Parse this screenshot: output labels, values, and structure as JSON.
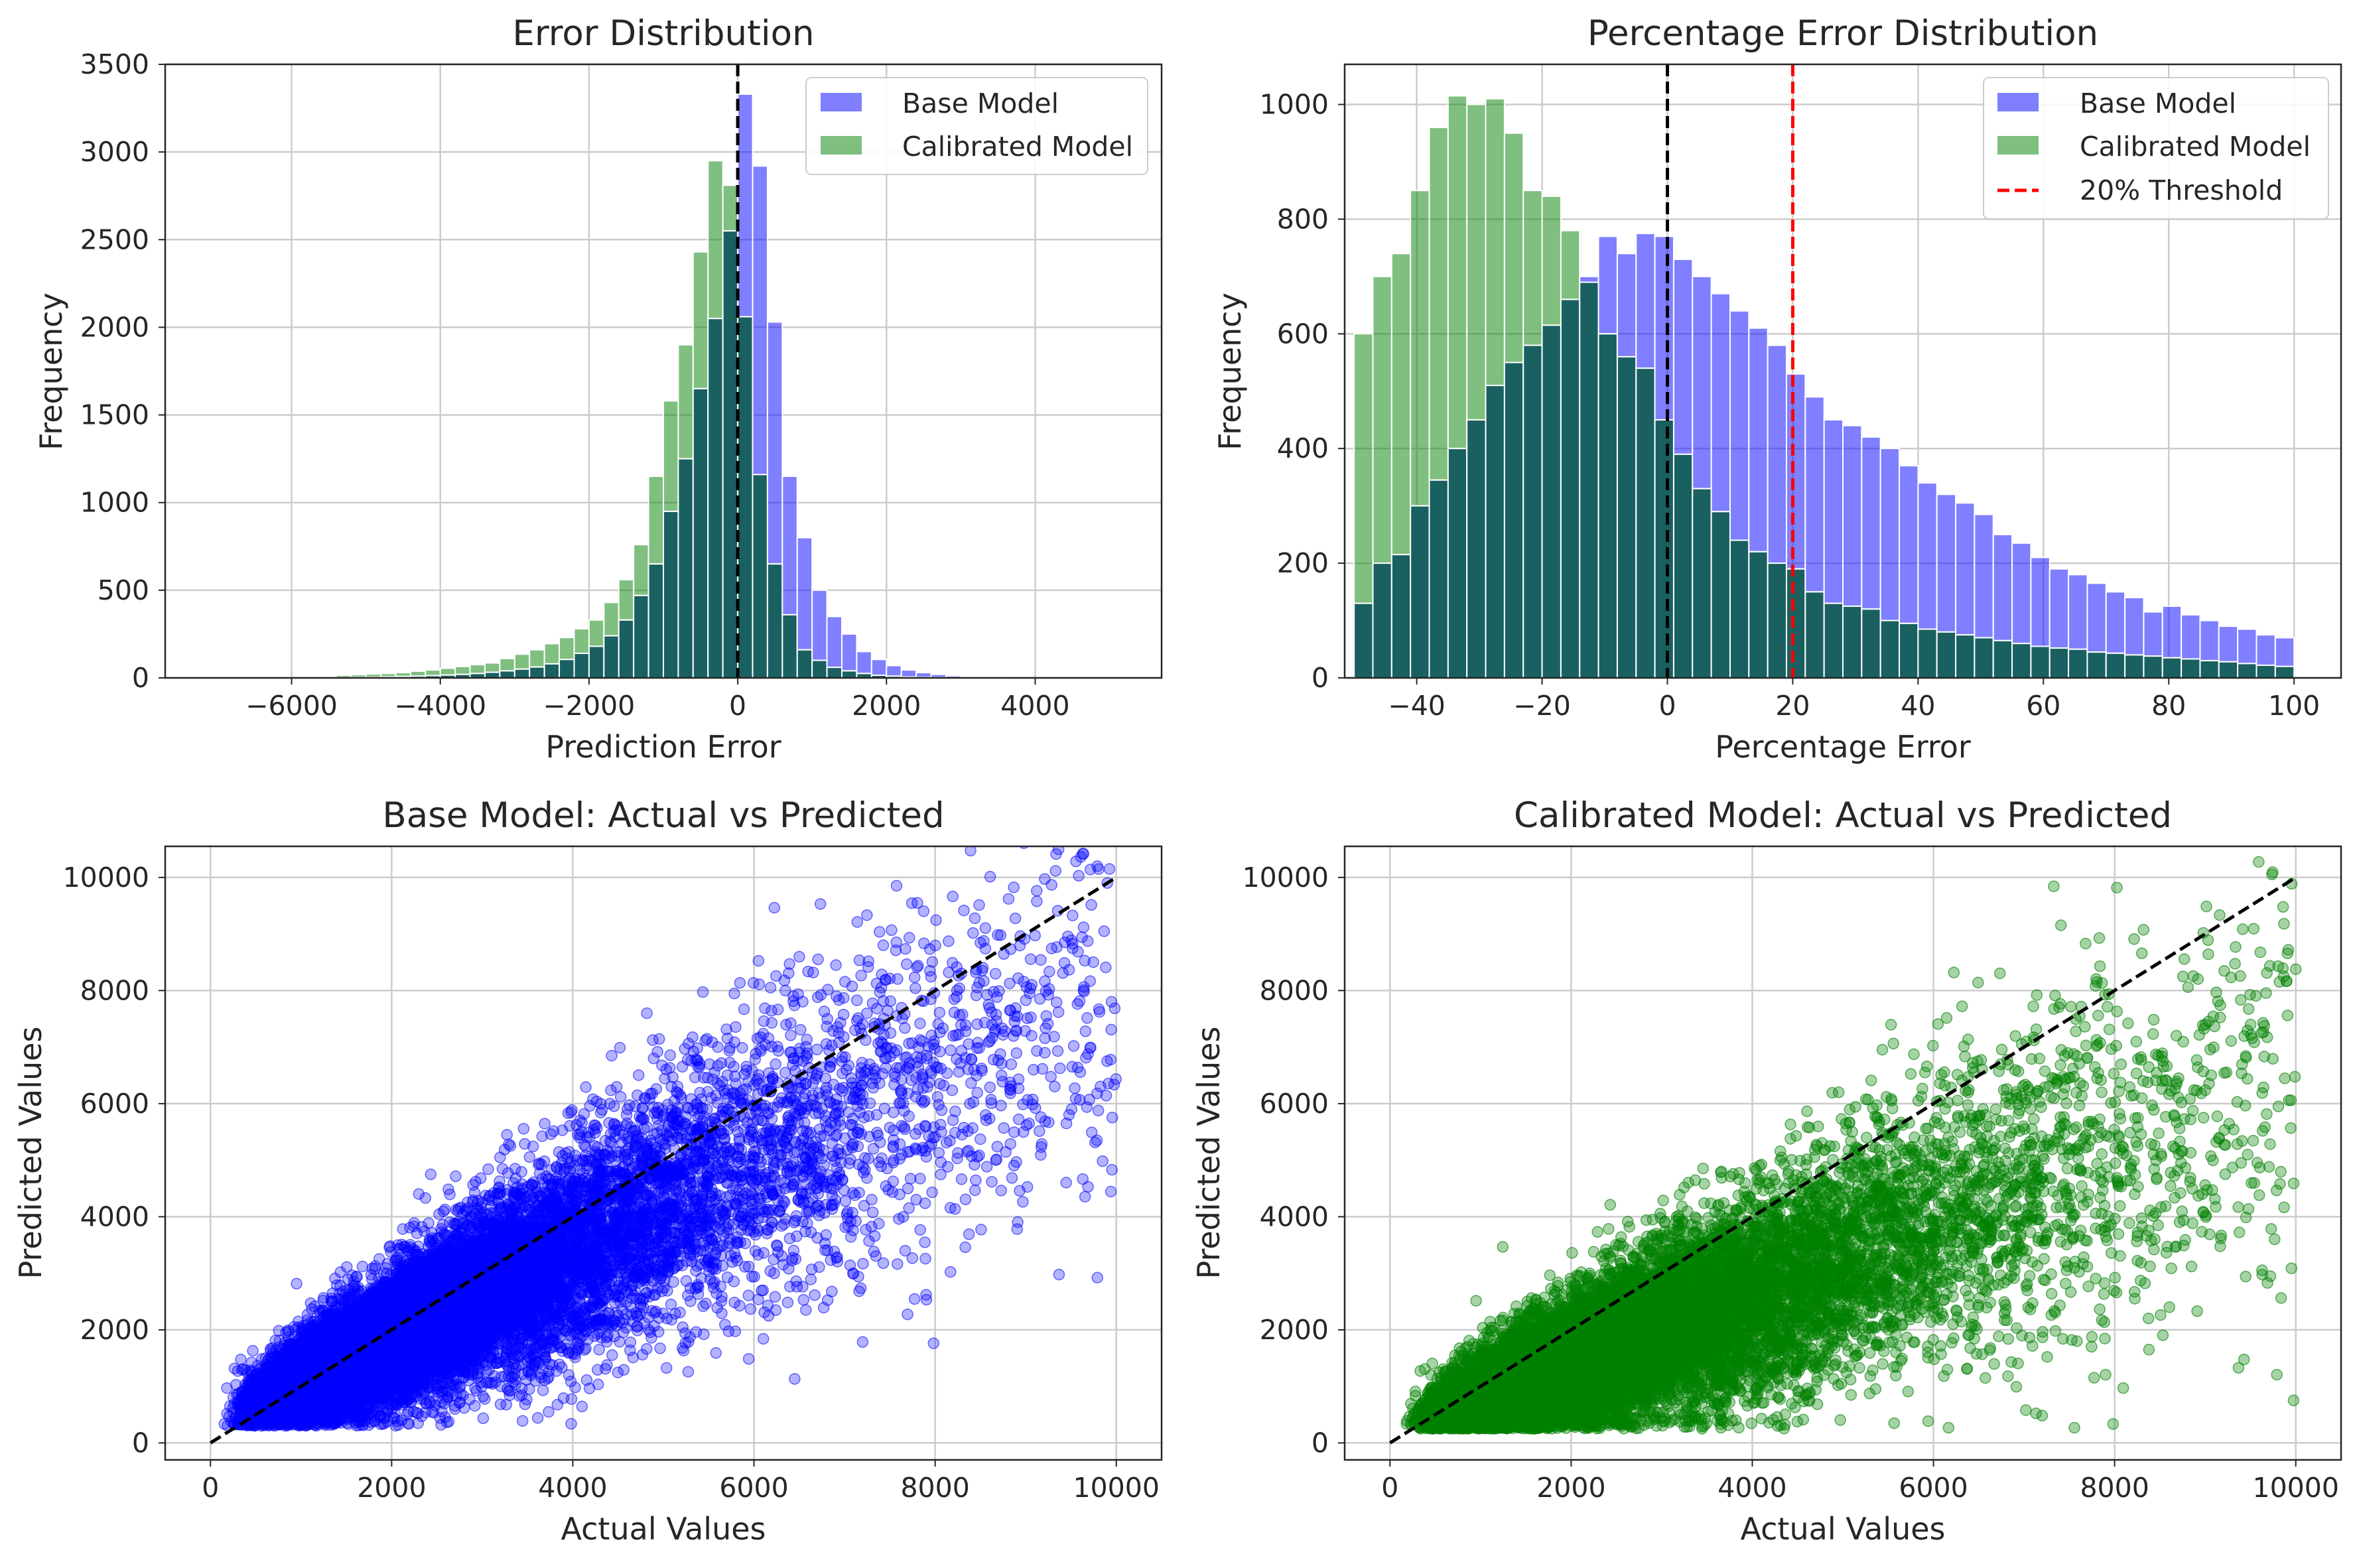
{
  "chart_data": [
    {
      "type": "histogram",
      "title": "Error Distribution",
      "xlabel": "Prediction Error",
      "ylabel": "Frequency",
      "xlim": [
        -7700,
        5700
      ],
      "ylim": [
        0,
        3500
      ],
      "xticks": [
        -6000,
        -4000,
        -2000,
        0,
        2000,
        4000
      ],
      "yticks": [
        0,
        500,
        1000,
        1500,
        2000,
        2500,
        3000,
        3500
      ],
      "grid": true,
      "legend_position": "top-right",
      "legend": [
        "Base Model",
        "Calibrated Model"
      ],
      "colors": {
        "base": "#0000ff",
        "calibrated": "#008000",
        "overlap": "#1a6060"
      },
      "bin_edges": [
        -5400,
        -5200,
        -5000,
        -4800,
        -4600,
        -4400,
        -4200,
        -4000,
        -3800,
        -3600,
        -3400,
        -3200,
        -3000,
        -2800,
        -2600,
        -2400,
        -2200,
        -2000,
        -1800,
        -1600,
        -1400,
        -1200,
        -1000,
        -800,
        -600,
        -400,
        -200,
        0,
        200,
        400,
        600,
        800,
        1000,
        1200,
        1400,
        1600,
        1800,
        2000,
        2200,
        2400,
        2600,
        2800,
        3000,
        3200,
        3400,
        3600
      ],
      "series": [
        {
          "name": "Base Model",
          "values": [
            2,
            3,
            4,
            6,
            8,
            10,
            13,
            16,
            20,
            25,
            32,
            40,
            50,
            62,
            80,
            105,
            140,
            180,
            240,
            330,
            470,
            650,
            950,
            1250,
            1650,
            2050,
            2550,
            3330,
            2920,
            2030,
            1150,
            800,
            500,
            350,
            250,
            150,
            105,
            70,
            45,
            30,
            20,
            12,
            8,
            5,
            3
          ]
        },
        {
          "name": "Calibrated Model",
          "values": [
            15,
            18,
            22,
            25,
            30,
            38,
            45,
            55,
            65,
            75,
            85,
            110,
            135,
            160,
            195,
            230,
            280,
            330,
            430,
            560,
            760,
            1150,
            1580,
            1900,
            2430,
            2950,
            2810,
            2060,
            1160,
            650,
            360,
            160,
            100,
            60,
            40,
            25,
            15,
            10,
            5,
            3,
            2,
            1,
            1,
            0,
            0
          ]
        }
      ],
      "reference_lines": [
        {
          "x": 0,
          "color": "#000000",
          "style": "dashed"
        }
      ]
    },
    {
      "type": "histogram",
      "title": "Percentage Error Distribution",
      "xlabel": "Percentage Error",
      "ylabel": "Frequency",
      "xlim": [
        -51.5,
        107.5
      ],
      "ylim": [
        0,
        1070
      ],
      "xticks": [
        -40,
        -20,
        0,
        20,
        40,
        60,
        80,
        100
      ],
      "yticks": [
        0,
        200,
        400,
        600,
        800,
        1000
      ],
      "grid": true,
      "legend_position": "top-right",
      "legend": [
        "Base Model",
        "Calibrated Model",
        "20% Threshold"
      ],
      "colors": {
        "base": "#0000ff",
        "calibrated": "#008000",
        "overlap": "#1a6060",
        "threshold": "#ff0000"
      },
      "bin_edges": [
        -50,
        -47,
        -44,
        -41,
        -38,
        -35,
        -32,
        -29,
        -26,
        -23,
        -20,
        -17,
        -14,
        -11,
        -8,
        -5,
        -2,
        1,
        4,
        7,
        10,
        13,
        16,
        19,
        22,
        25,
        28,
        31,
        34,
        37,
        40,
        43,
        46,
        49,
        52,
        55,
        58,
        61,
        64,
        67,
        70,
        73,
        76,
        79,
        82,
        85,
        88,
        91,
        94,
        97,
        100
      ],
      "series": [
        {
          "name": "Base Model",
          "values": [
            130,
            200,
            215,
            300,
            345,
            400,
            450,
            510,
            550,
            580,
            615,
            660,
            700,
            770,
            740,
            775,
            770,
            730,
            700,
            670,
            640,
            610,
            580,
            530,
            490,
            450,
            440,
            420,
            400,
            370,
            340,
            320,
            305,
            285,
            250,
            235,
            210,
            190,
            180,
            165,
            150,
            140,
            115,
            125,
            110,
            100,
            90,
            85,
            75,
            70
          ]
        },
        {
          "name": "Calibrated Model",
          "values": [
            600,
            700,
            740,
            850,
            960,
            1015,
            1000,
            1010,
            950,
            850,
            840,
            780,
            690,
            600,
            560,
            540,
            450,
            390,
            330,
            290,
            240,
            220,
            200,
            190,
            150,
            130,
            125,
            120,
            100,
            95,
            85,
            80,
            75,
            70,
            65,
            60,
            55,
            52,
            50,
            45,
            43,
            40,
            38,
            35,
            33,
            30,
            28,
            25,
            22,
            20
          ]
        }
      ],
      "reference_lines": [
        {
          "x": 0,
          "color": "#000000",
          "style": "dashed"
        },
        {
          "x": 20,
          "color": "#ff0000",
          "style": "dashed",
          "label": "20% Threshold"
        }
      ]
    },
    {
      "type": "scatter",
      "title": "Base Model: Actual vs Predicted",
      "xlabel": "Actual Values",
      "ylabel": "Predicted Values",
      "xlim": [
        -500,
        10500
      ],
      "ylim": [
        -300,
        10550
      ],
      "xticks": [
        0,
        2000,
        4000,
        6000,
        8000,
        10000
      ],
      "yticks": [
        0,
        2000,
        4000,
        6000,
        8000,
        10000
      ],
      "grid": true,
      "color": "#0000ff",
      "point_alpha": 0.3,
      "point_count": 14000,
      "trend": {
        "x_median": 2500,
        "x_max": 10000,
        "y_slope": 0.78,
        "y_intercept": 300,
        "y_min": 300
      },
      "reference_lines": [
        {
          "from": [
            0,
            0
          ],
          "to": [
            10000,
            10000
          ],
          "color": "#000000",
          "style": "dashed"
        }
      ]
    },
    {
      "type": "scatter",
      "title": "Calibrated Model: Actual vs Predicted",
      "xlabel": "Actual Values",
      "ylabel": "Predicted Values",
      "xlim": [
        -500,
        10500
      ],
      "ylim": [
        -300,
        10550
      ],
      "xticks": [
        0,
        2000,
        4000,
        6000,
        8000,
        10000
      ],
      "yticks": [
        0,
        2000,
        4000,
        6000,
        8000,
        10000
      ],
      "grid": true,
      "color": "#008000",
      "point_alpha": 0.35,
      "point_count": 14000,
      "trend": {
        "x_median": 2500,
        "x_max": 10000,
        "y_slope": 0.62,
        "y_intercept": 150,
        "y_min": 250
      },
      "reference_lines": [
        {
          "from": [
            0,
            0
          ],
          "to": [
            10000,
            10000
          ],
          "color": "#000000",
          "style": "dashed"
        }
      ]
    }
  ]
}
